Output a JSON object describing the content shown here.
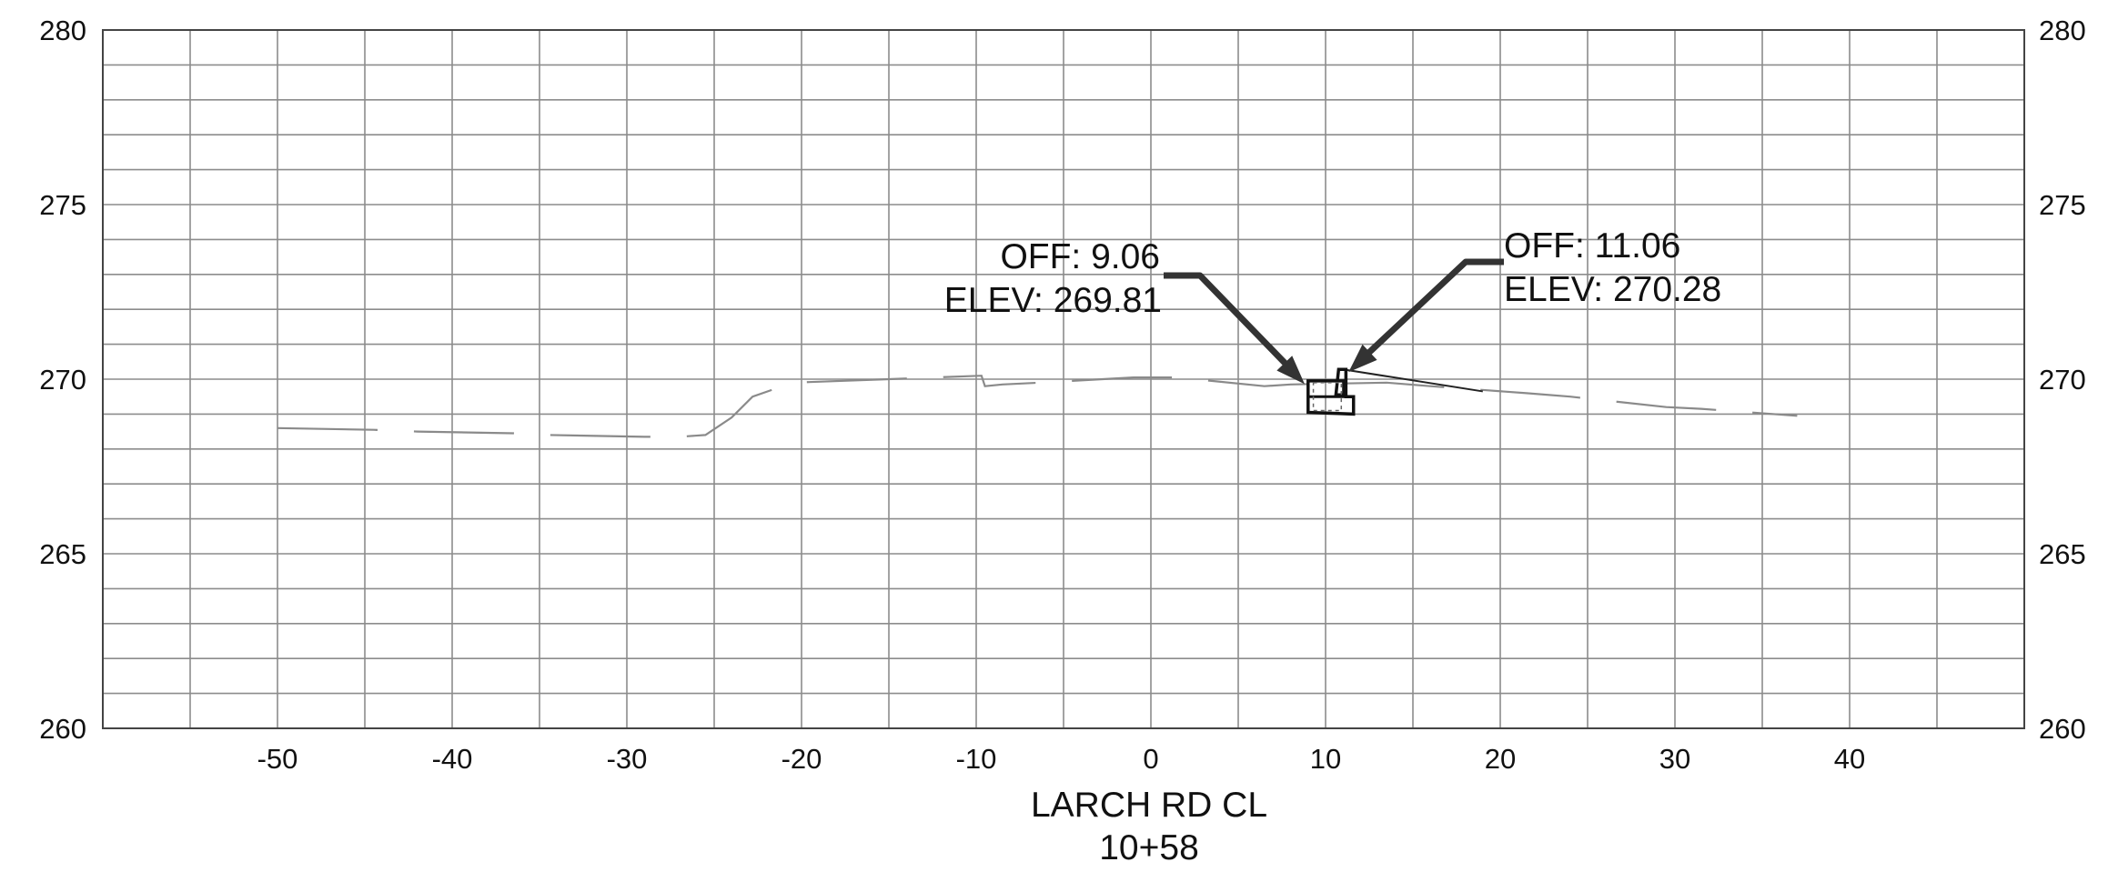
{
  "chart_data": {
    "type": "cross-section",
    "title": "",
    "xlim": [
      -60,
      50
    ],
    "ylim": [
      260,
      280
    ],
    "x_ticks": [
      -50,
      -40,
      -30,
      -20,
      -10,
      0,
      10,
      20,
      30,
      40
    ],
    "x_tick_labels": [
      "-50",
      "-40",
      "-30",
      "-20",
      "-10",
      "0",
      "10",
      "20",
      "30",
      "40"
    ],
    "y_ticks": [
      260,
      265,
      270,
      275,
      280
    ],
    "y_tick_labels": [
      "260",
      "265",
      "270",
      "275",
      "280"
    ],
    "grid": {
      "x_major": 10,
      "x_minor": 5,
      "y_minor": 1
    },
    "caption": {
      "line1": "LARCH RD CL",
      "line2": "10+58"
    },
    "ground_profile": [
      [
        -50,
        268.6
      ],
      [
        -44.5,
        268.55
      ],
      [
        -42,
        268.5
      ],
      [
        -36.5,
        268.45
      ],
      [
        -34.5,
        268.4
      ],
      [
        -29,
        268.35
      ],
      [
        -27,
        268.35
      ],
      [
        -25.5,
        268.4
      ],
      [
        -24,
        268.9
      ],
      [
        -22.8,
        269.5
      ],
      [
        -20.5,
        269.9
      ],
      [
        -15,
        270.0
      ],
      [
        -9.7,
        270.1
      ],
      [
        -9.5,
        269.8
      ],
      [
        -8.5,
        269.85
      ],
      [
        -6.3,
        269.9
      ],
      [
        -1,
        270.05
      ],
      [
        1.5,
        270.05
      ],
      [
        6.5,
        269.8
      ],
      [
        8,
        269.85
      ],
      [
        13.5,
        269.9
      ],
      [
        16,
        269.8
      ],
      [
        21.5,
        269.6
      ],
      [
        24,
        269.5
      ],
      [
        29.5,
        269.2
      ],
      [
        31.5,
        269.15
      ],
      [
        37,
        268.95
      ]
    ],
    "finished_grade": [
      [
        11.0,
        270.28
      ],
      [
        19.0,
        269.65
      ]
    ],
    "annotations": [
      {
        "off_label": "OFF: 9.06",
        "elev_label": "ELEV: 269.81",
        "offset": 9.06,
        "elev": 269.81
      },
      {
        "off_label": "OFF: 11.06",
        "elev_label": "ELEV: 270.28",
        "offset": 11.06,
        "elev": 270.28
      }
    ]
  }
}
